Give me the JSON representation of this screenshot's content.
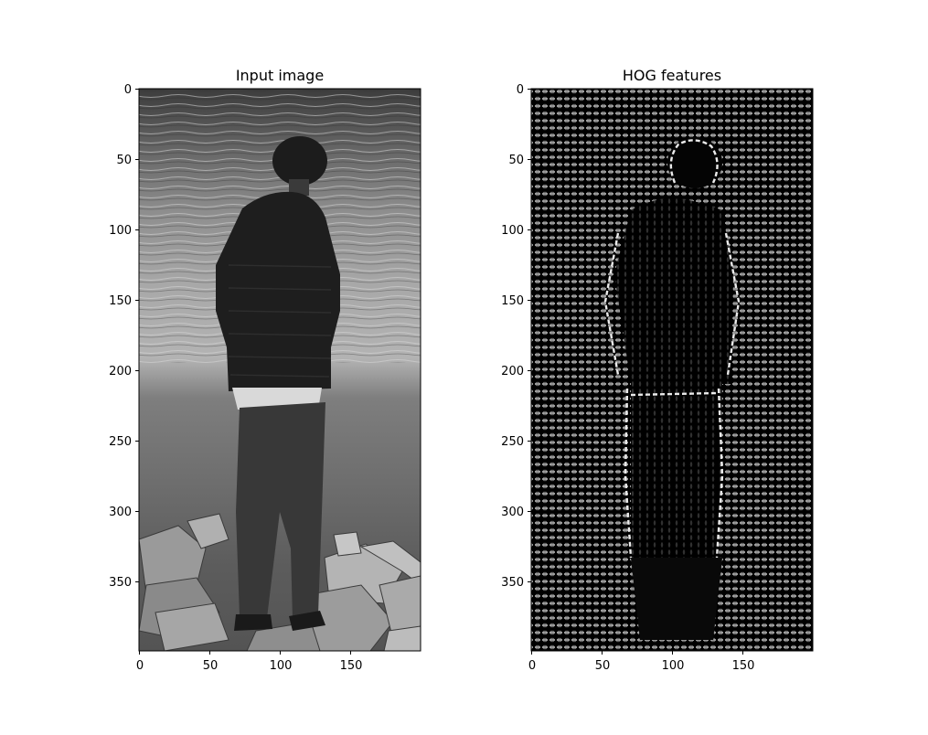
{
  "figure": {
    "panels": [
      {
        "title": "Input image",
        "content": "grayscale photo: person in dark puffer jacket standing on rocks facing water",
        "x_ticks": [
          "0",
          "50",
          "100",
          "150"
        ],
        "y_ticks": [
          "0",
          "50",
          "100",
          "150",
          "200",
          "250",
          "300",
          "350"
        ]
      },
      {
        "title": "HOG features",
        "content": "HOG visualization: grid of white oriented-gradient glyphs, person silhouette outlined",
        "x_ticks": [
          "0",
          "50",
          "100",
          "150"
        ],
        "y_ticks": [
          "0",
          "50",
          "100",
          "150",
          "200",
          "250",
          "300",
          "350"
        ]
      }
    ],
    "image_extent": {
      "width": 200,
      "height": 400
    },
    "colors": {
      "axis": "#000000",
      "background": "#ffffff"
    }
  }
}
